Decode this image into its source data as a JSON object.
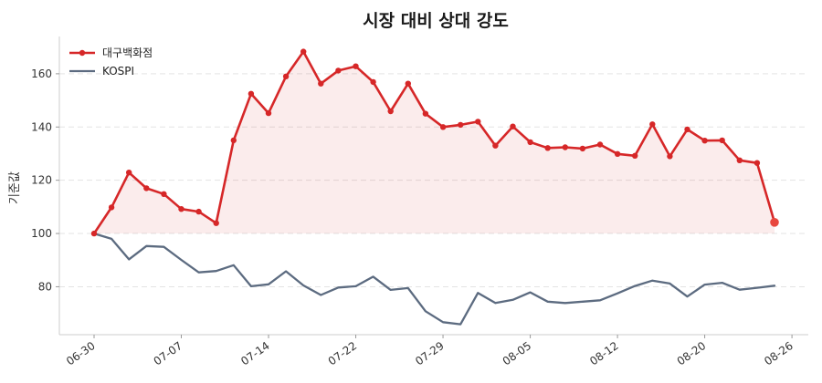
{
  "chart_data": {
    "type": "line",
    "title": "시장 대비 상대 강도",
    "xlabel": "",
    "ylabel": "기준값",
    "ylim": [
      62,
      174
    ],
    "yticks": [
      80,
      100,
      120,
      140,
      160
    ],
    "x_ticks": [
      "06-30",
      "07-07",
      "07-14",
      "07-22",
      "07-29",
      "08-05",
      "08-12",
      "08-20",
      "08-26"
    ],
    "x_tick_index": [
      0,
      5,
      10,
      15,
      20,
      25,
      30,
      35,
      40
    ],
    "grid": "horizontal-dashed",
    "legend_position": "top-left",
    "baseline": 100,
    "series": [
      {
        "name": "대구백화점",
        "color": "#d62728",
        "marker": "circle",
        "fill_to_baseline": true,
        "values": [
          100,
          109.8,
          122.9,
          117,
          114.8,
          109.2,
          108.2,
          103.9,
          135,
          152.5,
          145.2,
          159,
          168.3,
          156.3,
          161.2,
          162.8,
          156.9,
          145.9,
          156.3,
          145,
          140,
          140.8,
          142,
          133,
          140.2,
          134.3,
          132.1,
          132.4,
          131.9,
          133.4,
          129.9,
          129.2,
          141,
          129,
          139.1,
          134.9,
          135,
          127.5,
          126.5,
          104.2
        ]
      },
      {
        "name": "KOSPI",
        "color": "#5c6b80",
        "marker": "none",
        "values": [
          100,
          98,
          90.3,
          95.3,
          95,
          90.1,
          85.4,
          85.9,
          88.1,
          80.2,
          80.9,
          85.8,
          80.5,
          76.9,
          79.7,
          80.2,
          83.8,
          78.8,
          79.5,
          70.8,
          66.7,
          65.9,
          77.7,
          73.9,
          75.1,
          77.9,
          74.4,
          73.9,
          74.4,
          74.9,
          77.5,
          80.3,
          82.3,
          81.2,
          76.3,
          80.8,
          81.5,
          78.9,
          79.6,
          80.4
        ]
      }
    ]
  }
}
